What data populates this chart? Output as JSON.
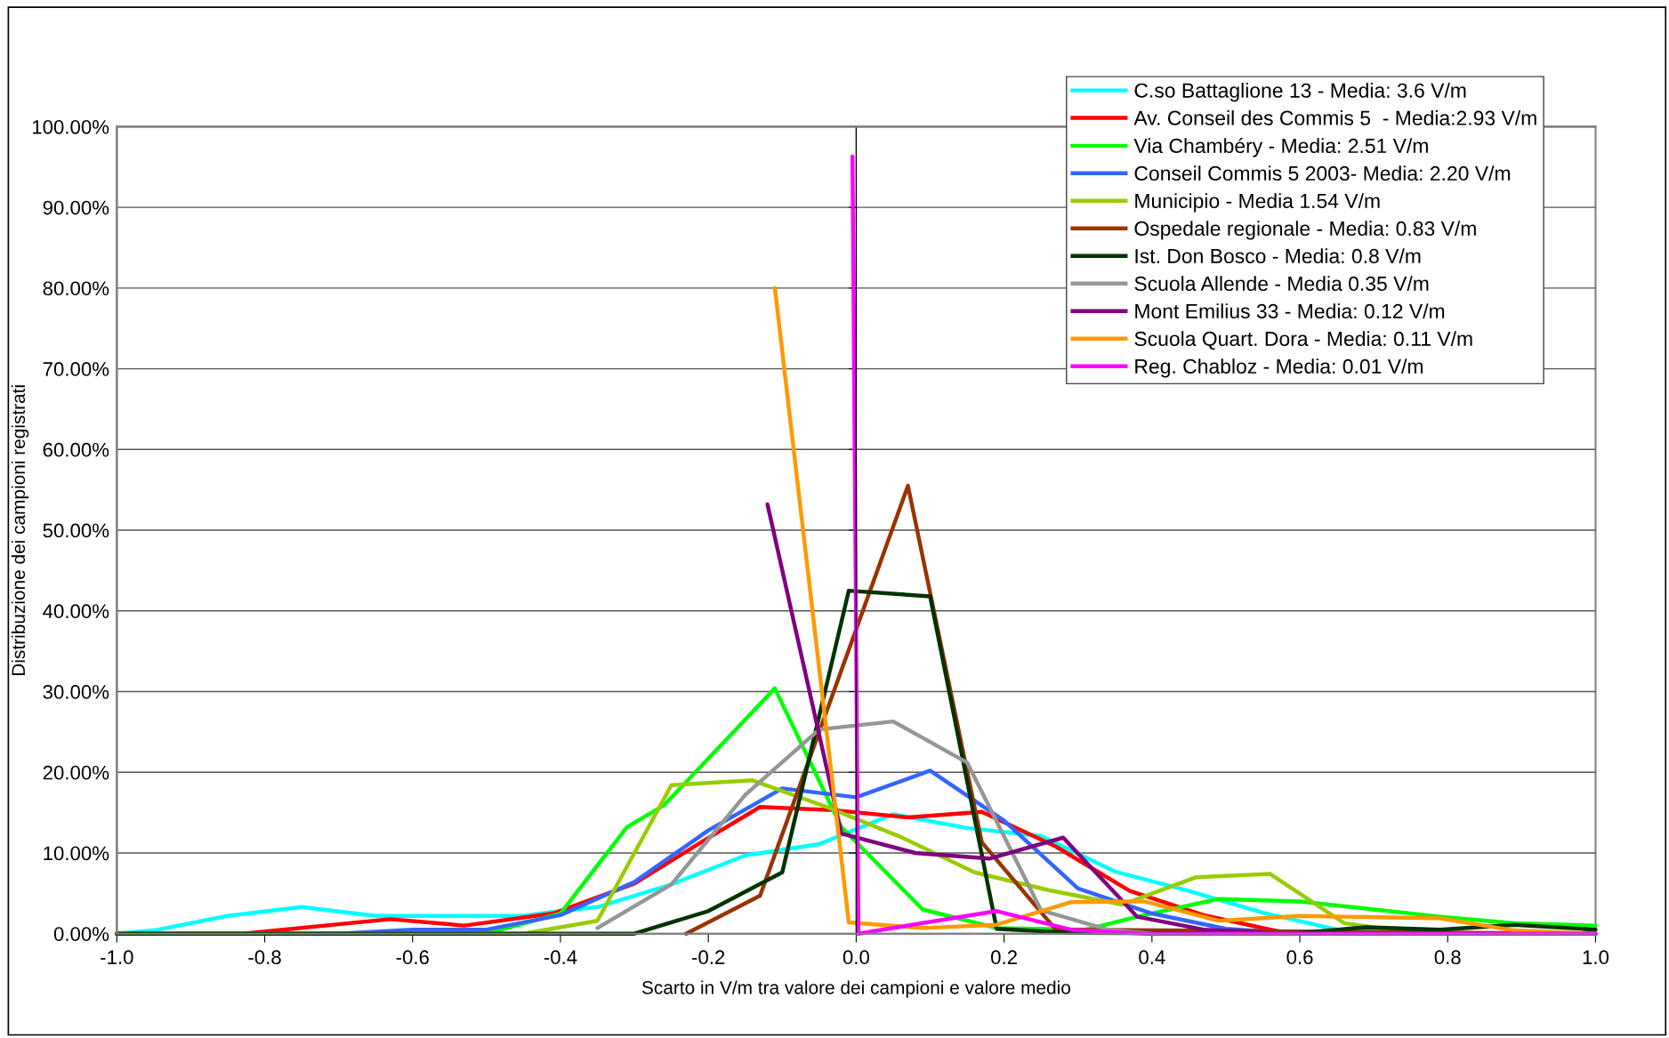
{
  "chart_data": {
    "type": "line",
    "xlabel": "Scarto in V/m tra valore dei campioni e valore medio",
    "ylabel": "Distribuzione dei campioni registrati",
    "xlim": [
      -1,
      1
    ],
    "xticks": [
      {
        "value": -1,
        "label": "-1.0"
      },
      {
        "value": -0.8,
        "label": "-0.8"
      },
      {
        "value": -0.6,
        "label": "-0.6"
      },
      {
        "value": -0.4,
        "label": "-0.4"
      },
      {
        "value": -0.2,
        "label": "-0.2"
      },
      {
        "value": 0,
        "label": "0.0"
      },
      {
        "value": 0.2,
        "label": "0.2"
      },
      {
        "value": 0.4,
        "label": "0.4"
      },
      {
        "value": 0.6,
        "label": "0.6"
      },
      {
        "value": 0.8,
        "label": "0.8"
      },
      {
        "value": 1,
        "label": "1.0"
      }
    ],
    "ylim": [
      0,
      100
    ],
    "yticks": [
      {
        "value": 0,
        "label": "0.00%"
      },
      {
        "value": 10,
        "label": "10.00%"
      },
      {
        "value": 20,
        "label": "20.00%"
      },
      {
        "value": 30,
        "label": "30.00%"
      },
      {
        "value": 40,
        "label": "40.00%"
      },
      {
        "value": 50,
        "label": "50.00%"
      },
      {
        "value": 60,
        "label": "60.00%"
      },
      {
        "value": 70,
        "label": "70.00%"
      },
      {
        "value": 80,
        "label": "80.00%"
      },
      {
        "value": 90,
        "label": "90.00%"
      },
      {
        "value": 100,
        "label": "100.00%"
      }
    ],
    "grid": "y",
    "legend": "top right",
    "marker": "none",
    "line_style": "solid",
    "series": [
      {
        "name": "C.so Battaglione 13 - Media: 3.6 V/m",
        "color": "#00ffff",
        "x": [
          -1,
          -0.95,
          -0.85,
          -0.75,
          -0.65,
          -0.55,
          -0.45,
          -0.41,
          -0.35,
          -0.25,
          -0.15,
          -0.05,
          0.05,
          0.15,
          0.25,
          0.35,
          0.45,
          0.55,
          0.65,
          0.75,
          1
        ],
        "values": [
          0,
          0.4,
          2.2,
          3.3,
          2.2,
          2.2,
          2.2,
          2.7,
          3.3,
          6.1,
          9.7,
          11.1,
          14.8,
          13.1,
          12.1,
          7.7,
          5.3,
          2.6,
          0.5,
          0,
          0
        ]
      },
      {
        "name": "Av. Conseil des Commis 5  - Media:2.93 V/m",
        "color": "#ff0000",
        "x": [
          -1,
          -0.83,
          -0.63,
          -0.53,
          -0.41,
          -0.3,
          -0.21,
          -0.13,
          -0.03,
          0.07,
          0.17,
          0.27,
          0.37,
          0.47,
          0.57,
          0.67,
          1
        ],
        "values": [
          0,
          0,
          1.8,
          1.0,
          2.5,
          6.2,
          11.3,
          15.7,
          15.3,
          14.4,
          15.1,
          10.8,
          5.3,
          2.3,
          0.3,
          0,
          0
        ]
      },
      {
        "name": "Via Chambéry - Media: 2.51 V/m",
        "color": "#00ff00",
        "x": [
          -1,
          -0.5,
          -0.4,
          -0.31,
          -0.26,
          -0.11,
          -0.02,
          0.09,
          0.19,
          0.31,
          0.38,
          0.49,
          0.6,
          0.79,
          0.89,
          1
        ],
        "values": [
          0,
          0,
          2.5,
          13.2,
          15.9,
          30.4,
          13.2,
          3.0,
          0.7,
          0.5,
          2.1,
          4.3,
          4.0,
          2.1,
          1.3,
          1.0
        ]
      },
      {
        "name": "Conseil Commis 5 2003- Media: 2.20 V/m",
        "color": "#3366ff",
        "x": [
          -1,
          -0.7,
          -0.6,
          -0.5,
          -0.4,
          -0.3,
          -0.2,
          -0.1,
          0,
          0.1,
          0.2,
          0.3,
          0.4,
          0.5,
          0.6,
          1
        ],
        "values": [
          0,
          0,
          0.5,
          0.5,
          2.3,
          6.4,
          12.8,
          18.0,
          16.9,
          20.2,
          14.0,
          5.6,
          2.5,
          0.6,
          0,
          0
        ]
      },
      {
        "name": "Municipio - Media 1.54 V/m",
        "color": "#99cc00",
        "x": [
          -1,
          -0.45,
          -0.35,
          -0.25,
          -0.14,
          -0.04,
          0.06,
          0.16,
          0.26,
          0.36,
          0.46,
          0.56,
          0.66,
          0.76,
          1
        ],
        "values": [
          0,
          0,
          1.6,
          18.4,
          19.0,
          15.7,
          12.0,
          7.6,
          5.4,
          3.6,
          7.0,
          7.4,
          1.3,
          0,
          0
        ]
      },
      {
        "name": "Ospedale regionale - Media: 0.83 V/m",
        "color": "#993300",
        "x": [
          -0.23,
          -0.13,
          0.07,
          0.17,
          0.27,
          1
        ],
        "values": [
          0,
          4.7,
          55.5,
          11.3,
          0.5,
          0
        ]
      },
      {
        "name": "Ist. Don Bosco - Media: 0.8 V/m",
        "color": "#003300",
        "x": [
          -1,
          -0.3,
          -0.2,
          -0.1,
          -0.01,
          0.1,
          0.19,
          0.29,
          0.59,
          0.69,
          0.79,
          0.89,
          1
        ],
        "values": [
          0,
          0,
          2.8,
          7.6,
          42.5,
          41.8,
          0.6,
          0.1,
          0,
          0.8,
          0.5,
          1.1,
          0.5
        ]
      },
      {
        "name": "Scuola Allende - Media 0.35 V/m",
        "color": "#969696",
        "x": [
          -0.35,
          -0.25,
          -0.15,
          -0.05,
          0.05,
          0.15,
          0.25,
          0.34,
          0.4
        ],
        "values": [
          0.7,
          6.1,
          17.2,
          25.3,
          26.3,
          21.2,
          2.9,
          0.5,
          0
        ]
      },
      {
        "name": "Mont Emilius 33 - Media: 0.12 V/m",
        "color": "#800080",
        "x": [
          -0.12,
          -0.02,
          0.08,
          0.18,
          0.28,
          0.38,
          0.47,
          0.58,
          1
        ],
        "values": [
          53.2,
          12.4,
          10.0,
          9.3,
          11.9,
          2.1,
          0.5,
          0,
          0
        ]
      },
      {
        "name": "Scuola Quart. Dora - Media: 0.11 V/m",
        "color": "#ff9900",
        "x": [
          -0.11,
          -0.01,
          0.09,
          0.19,
          0.29,
          0.39,
          0.49,
          0.6,
          0.79,
          0.89,
          1
        ],
        "values": [
          80.0,
          1.4,
          0.7,
          1.1,
          3.9,
          4.0,
          1.6,
          2.2,
          1.9,
          0.4,
          0
        ]
      },
      {
        "name": "Reg. Chabloz - Media: 0.01 V/m",
        "color": "#ff00ff",
        "x": [
          -0.005,
          0.003,
          0.19,
          0.29,
          0.39,
          1
        ],
        "values": [
          96.3,
          0,
          2.8,
          0.5,
          0,
          0
        ]
      }
    ]
  }
}
